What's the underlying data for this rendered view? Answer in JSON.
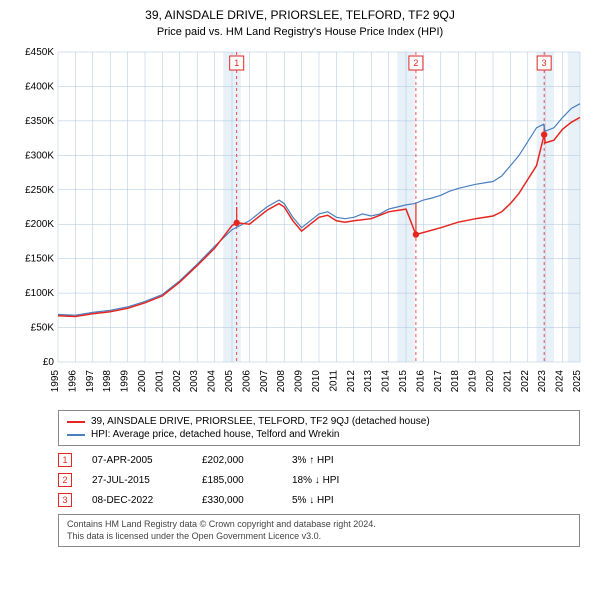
{
  "title": "39, AINSDALE DRIVE, PRIORSLEE, TELFORD, TF2 9QJ",
  "subtitle": "Price paid vs. HM Land Registry's House Price Index (HPI)",
  "chart": {
    "type": "line",
    "background_color": "#ffffff",
    "plot_background_color": "#ffffff",
    "gridline_color": "#a9c4de",
    "gridline_width": 0.5,
    "marker_box_border": "#e52620",
    "marker_box_fill": "#ffffff",
    "marker_text_color": "#e52620",
    "band_color": "#e8f0f8",
    "font_family": "Arial, sans-serif",
    "title_fontsize": 12,
    "subtitle_fontsize": 11,
    "tick_fontsize": 10,
    "legend_fontsize": 10,
    "y": {
      "min": 0,
      "max": 450000,
      "step": 50000,
      "ticks": [
        "£0",
        "£50K",
        "£100K",
        "£150K",
        "£200K",
        "£250K",
        "£300K",
        "£350K",
        "£400K",
        "£450K"
      ]
    },
    "x": {
      "min": 1995,
      "max": 2025,
      "step": 1,
      "ticks": [
        "1995",
        "1996",
        "1997",
        "1998",
        "1999",
        "2000",
        "2001",
        "2002",
        "2003",
        "2004",
        "2005",
        "2006",
        "2007",
        "2008",
        "2009",
        "2010",
        "2011",
        "2012",
        "2013",
        "2014",
        "2015",
        "2016",
        "2017",
        "2018",
        "2019",
        "2020",
        "2021",
        "2022",
        "2023",
        "2024",
        "2025"
      ],
      "bands": [
        [
          2004.5,
          2005.5
        ],
        [
          2014.5,
          2015.5
        ],
        [
          2022.5,
          2023.5
        ],
        [
          2024.3,
          2025
        ]
      ]
    },
    "series": [
      {
        "name": "hpi",
        "label": "HPI: Average price, detached house, Telford and Wrekin",
        "color": "#4a7fbf",
        "width": 1.2,
        "data": [
          [
            1995,
            69000
          ],
          [
            1996,
            68000
          ],
          [
            1997,
            72000
          ],
          [
            1998,
            75000
          ],
          [
            1999,
            80000
          ],
          [
            2000,
            88000
          ],
          [
            2001,
            98000
          ],
          [
            2002,
            118000
          ],
          [
            2003,
            142000
          ],
          [
            2004,
            168000
          ],
          [
            2005,
            192000
          ],
          [
            2006,
            205000
          ],
          [
            2007,
            225000
          ],
          [
            2007.7,
            235000
          ],
          [
            2008,
            230000
          ],
          [
            2008.5,
            210000
          ],
          [
            2009,
            195000
          ],
          [
            2009.5,
            205000
          ],
          [
            2010,
            215000
          ],
          [
            2010.5,
            218000
          ],
          [
            2011,
            210000
          ],
          [
            2011.5,
            208000
          ],
          [
            2012,
            210000
          ],
          [
            2012.5,
            215000
          ],
          [
            2013,
            212000
          ],
          [
            2013.5,
            215000
          ],
          [
            2014,
            222000
          ],
          [
            2014.5,
            225000
          ],
          [
            2015,
            228000
          ],
          [
            2015.5,
            230000
          ],
          [
            2016,
            235000
          ],
          [
            2016.5,
            238000
          ],
          [
            2017,
            242000
          ],
          [
            2017.5,
            248000
          ],
          [
            2018,
            252000
          ],
          [
            2018.5,
            255000
          ],
          [
            2019,
            258000
          ],
          [
            2019.5,
            260000
          ],
          [
            2020,
            262000
          ],
          [
            2020.5,
            270000
          ],
          [
            2021,
            285000
          ],
          [
            2021.5,
            300000
          ],
          [
            2022,
            320000
          ],
          [
            2022.5,
            340000
          ],
          [
            2022.9,
            345000
          ],
          [
            2023,
            335000
          ],
          [
            2023.5,
            340000
          ],
          [
            2024,
            355000
          ],
          [
            2024.5,
            368000
          ],
          [
            2025,
            375000
          ]
        ]
      },
      {
        "name": "property",
        "label": "39, AINSDALE DRIVE, PRIORSLEE, TELFORD, TF2 9QJ (detached house)",
        "color": "#e52620",
        "width": 1.5,
        "data": [
          [
            1995,
            67000
          ],
          [
            1996,
            66000
          ],
          [
            1997,
            70000
          ],
          [
            1998,
            73000
          ],
          [
            1999,
            78000
          ],
          [
            2000,
            86000
          ],
          [
            2001,
            96000
          ],
          [
            2002,
            116000
          ],
          [
            2003,
            140000
          ],
          [
            2004,
            165000
          ],
          [
            2005,
            198000
          ],
          [
            2005.27,
            202000
          ],
          [
            2006,
            200000
          ],
          [
            2007,
            220000
          ],
          [
            2007.7,
            230000
          ],
          [
            2008,
            225000
          ],
          [
            2008.5,
            205000
          ],
          [
            2009,
            190000
          ],
          [
            2009.5,
            200000
          ],
          [
            2010,
            210000
          ],
          [
            2010.5,
            213000
          ],
          [
            2011,
            205000
          ],
          [
            2011.5,
            203000
          ],
          [
            2012,
            205000
          ],
          [
            2013,
            208000
          ],
          [
            2014,
            218000
          ],
          [
            2015,
            222000
          ],
          [
            2015.57,
            185000
          ],
          [
            2016,
            188000
          ],
          [
            2017,
            195000
          ],
          [
            2018,
            203000
          ],
          [
            2019,
            208000
          ],
          [
            2020,
            212000
          ],
          [
            2020.5,
            218000
          ],
          [
            2021,
            230000
          ],
          [
            2021.5,
            245000
          ],
          [
            2022,
            265000
          ],
          [
            2022.5,
            285000
          ],
          [
            2022.94,
            330000
          ],
          [
            2023,
            318000
          ],
          [
            2023.5,
            322000
          ],
          [
            2024,
            338000
          ],
          [
            2024.5,
            348000
          ],
          [
            2025,
            355000
          ]
        ]
      }
    ],
    "sale_markers": [
      {
        "n": "1",
        "x": 2005.27,
        "y": 202000,
        "drop_to": 225000
      },
      {
        "n": "2",
        "x": 2015.57,
        "y": 185000,
        "drop_to": 230000
      },
      {
        "n": "3",
        "x": 2022.94,
        "y": 330000,
        "drop_to": 345000
      }
    ]
  },
  "legend": {
    "series1_label": "39, AINSDALE DRIVE, PRIORSLEE, TELFORD, TF2 9QJ (detached house)",
    "series1_color": "#e52620",
    "series2_label": "HPI: Average price, detached house, Telford and Wrekin",
    "series2_color": "#4a7fbf"
  },
  "sales": [
    {
      "n": "1",
      "date": "07-APR-2005",
      "price": "£202,000",
      "delta": "3% ↑ HPI"
    },
    {
      "n": "2",
      "date": "27-JUL-2015",
      "price": "£185,000",
      "delta": "18% ↓ HPI"
    },
    {
      "n": "3",
      "date": "08-DEC-2022",
      "price": "£330,000",
      "delta": "5% ↓ HPI"
    }
  ],
  "attribution": {
    "line1": "Contains HM Land Registry data © Crown copyright and database right 2024.",
    "line2": "This data is licensed under the Open Government Licence v3.0."
  }
}
